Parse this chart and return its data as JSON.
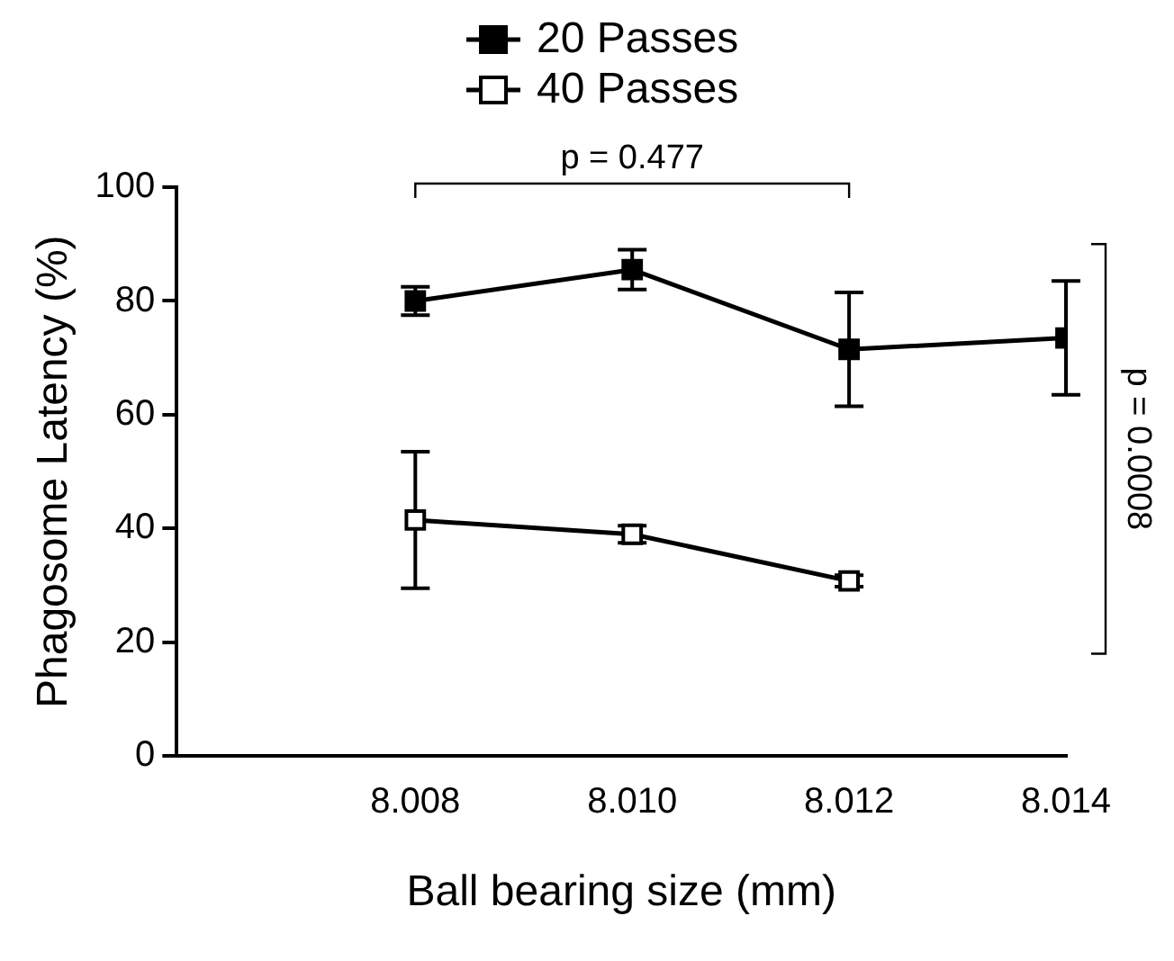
{
  "chart_data": {
    "type": "line",
    "xlabel": "Ball bearing size (mm)",
    "ylabel": "Phagosome Latency (%)",
    "x": [
      8.008,
      8.01,
      8.012,
      8.014
    ],
    "series": [
      {
        "name": "20 Passes",
        "color": "#000000",
        "values": [
          80,
          85.5,
          71.5,
          73.5
        ],
        "errors": [
          2.5,
          3.5,
          10,
          10
        ]
      },
      {
        "name": "40 Passes",
        "color": "#000000",
        "values": [
          41.5,
          39,
          30.8,
          null
        ],
        "errors": [
          12,
          1.5,
          1,
          null
        ]
      }
    ],
    "xlim": [
      8.0058,
      8.014
    ],
    "xticks": [
      {
        "value": 8.008,
        "label": "8.008"
      },
      {
        "value": 8.01,
        "label": "8.010"
      },
      {
        "value": 8.012,
        "label": "8.012"
      },
      {
        "value": 8.014,
        "label": "8.014"
      }
    ],
    "ylim": [
      0,
      100
    ],
    "yticks": [
      0,
      20,
      40,
      60,
      80,
      100
    ],
    "annotations": [
      "p = 0.477",
      "p = 0.0008"
    ],
    "grid": false,
    "legend": "top",
    "marker": "square",
    "line_style": "solid"
  }
}
